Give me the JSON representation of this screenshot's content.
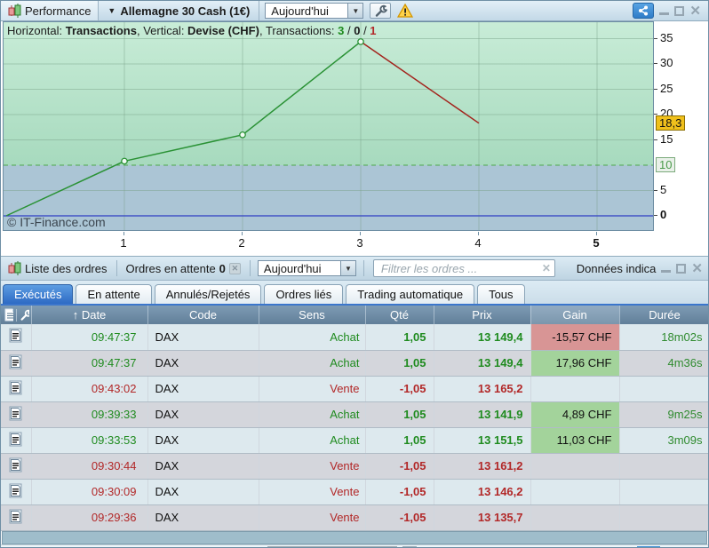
{
  "toolbar": {
    "tab": "Performance",
    "dropdown_arrow": "▼",
    "instrument": "Allemagne 30 Cash (1€)",
    "period": "Aujourd'hui"
  },
  "chart": {
    "header": {
      "h_label": "Horizontal: ",
      "h_value": "Transactions",
      "sep1": ", ",
      "v_label": "Vertical: ",
      "v_value": "Devise (CHF)",
      "sep2": ", ",
      "t_label": "Transactions: ",
      "wins": "3",
      "slash1": " / ",
      "neutral": "0",
      "slash2": " / ",
      "losses": "1"
    },
    "watermark": "© IT-Finance.com"
  },
  "chart_data": {
    "type": "line",
    "x": [
      0,
      1,
      2,
      3,
      4
    ],
    "values": [
      0,
      10.8,
      16.0,
      34.4,
      18.3
    ],
    "x_ticks": [
      "1",
      "2",
      "3",
      "4",
      "5"
    ],
    "y_ticks": [
      0,
      5,
      15,
      20,
      25,
      30,
      35
    ],
    "ylim": [
      0,
      38
    ],
    "zero_line": 0,
    "level_line": 10,
    "level_label": "10",
    "last_value_label": "18,3",
    "xlabel": "Transactions",
    "ylabel": "Devise (CHF)",
    "up_color": "#2a9235",
    "down_color": "#a3231c",
    "grid": true
  },
  "orders": {
    "title": "Liste des ordres",
    "pending_label": "Ordres en attente ",
    "pending_count": "0",
    "period": "Aujourd'hui",
    "filter_placeholder": "Filtrer les ordres ...",
    "side_panel_title": "Données indica",
    "tabs": [
      {
        "label": "Exécutés",
        "active": true
      },
      {
        "label": "En attente",
        "active": false
      },
      {
        "label": "Annulés/Rejetés",
        "active": false
      },
      {
        "label": "Ordres liés",
        "active": false
      },
      {
        "label": "Trading automatique",
        "active": false
      },
      {
        "label": "Tous",
        "active": false
      }
    ],
    "sort_arrow": "↑",
    "columns": [
      "Date",
      "Code",
      "Sens",
      "Qté",
      "Prix",
      "Gain",
      "Durée"
    ],
    "rows": [
      {
        "time": "09:47:37",
        "side": "buy",
        "code": "DAX",
        "sens": "Achat",
        "qte": "1,05",
        "prix": "13 149,4",
        "gain": "-15,57 CHF",
        "gain_type": "loss",
        "duree": "18m02s"
      },
      {
        "time": "09:47:37",
        "side": "buy",
        "code": "DAX",
        "sens": "Achat",
        "qte": "1,05",
        "prix": "13 149,4",
        "gain": "17,96 CHF",
        "gain_type": "profit",
        "duree": "4m36s"
      },
      {
        "time": "09:43:02",
        "side": "sell",
        "code": "DAX",
        "sens": "Vente",
        "qte": "-1,05",
        "prix": "13 165,2",
        "gain": "",
        "gain_type": "none",
        "duree": ""
      },
      {
        "time": "09:39:33",
        "side": "buy",
        "code": "DAX",
        "sens": "Achat",
        "qte": "1,05",
        "prix": "13 141,9",
        "gain": "4,89 CHF",
        "gain_type": "profit",
        "duree": "9m25s"
      },
      {
        "time": "09:33:53",
        "side": "buy",
        "code": "DAX",
        "sens": "Achat",
        "qte": "1,05",
        "prix": "13 151,5",
        "gain": "11,03 CHF",
        "gain_type": "profit",
        "duree": "3m09s"
      },
      {
        "time": "09:30:44",
        "side": "sell",
        "code": "DAX",
        "sens": "Vente",
        "qte": "-1,05",
        "prix": "13 161,2",
        "gain": "",
        "gain_type": "none",
        "duree": ""
      },
      {
        "time": "09:30:09",
        "side": "sell",
        "code": "DAX",
        "sens": "Vente",
        "qte": "-1,05",
        "prix": "13 146,2",
        "gain": "",
        "gain_type": "none",
        "duree": ""
      },
      {
        "time": "09:29:36",
        "side": "sell",
        "code": "DAX",
        "sens": "Vente",
        "qte": "-1,05",
        "prix": "13 135,7",
        "gain": "",
        "gain_type": "none",
        "duree": ""
      }
    ]
  },
  "colors": {
    "buy_text": "#1f8b1f",
    "sell_text": "#b22828",
    "profit_bg": "#a3d39b",
    "loss_bg": "#d89595",
    "counts_win": "#1f8b1f",
    "counts_loss": "#b22828",
    "last_value_bg": "#f0c01c",
    "active_tab": "#2d6ac4",
    "share_btn": "#3f8fd6"
  }
}
